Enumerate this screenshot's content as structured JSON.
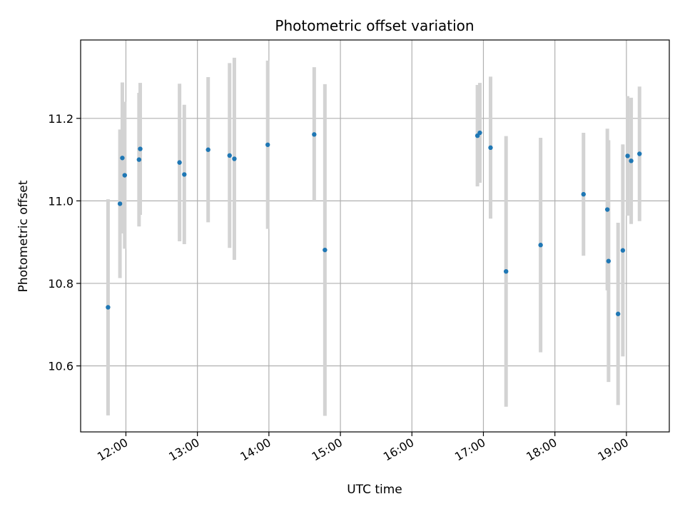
{
  "chart_data": {
    "type": "scatter",
    "title": "Photometric offset variation",
    "xlabel": "UTC time",
    "ylabel": "Photometric offset",
    "x_ticks": [
      "12:00",
      "13:00",
      "14:00",
      "15:00",
      "16:00",
      "17:00",
      "18:00",
      "19:00"
    ],
    "y_ticks": [
      "10.6",
      "10.8",
      "11.0",
      "11.2"
    ],
    "xlim": [
      "11:22",
      "19:36"
    ],
    "ylim": [
      10.44,
      11.39
    ],
    "grid": true,
    "marker_color": "#1f77b4",
    "errorbar_color": "#d3d3d3",
    "points": [
      {
        "t": "11:45",
        "y": 10.742,
        "err": 0.262
      },
      {
        "t": "11:55",
        "y": 10.993,
        "err": 0.18
      },
      {
        "t": "11:57",
        "y": 11.104,
        "err": 0.183
      },
      {
        "t": "11:59",
        "y": 11.062,
        "err": 0.178
      },
      {
        "t": "12:11",
        "y": 11.1,
        "err": 0.162
      },
      {
        "t": "12:12",
        "y": 11.126,
        "err": 0.16
      },
      {
        "t": "12:45",
        "y": 11.093,
        "err": 0.191
      },
      {
        "t": "12:49",
        "y": 11.064,
        "err": 0.169
      },
      {
        "t": "13:09",
        "y": 11.124,
        "err": 0.176
      },
      {
        "t": "13:27",
        "y": 11.11,
        "err": 0.224
      },
      {
        "t": "13:31",
        "y": 11.102,
        "err": 0.245
      },
      {
        "t": "13:59",
        "y": 11.136,
        "err": 0.204
      },
      {
        "t": "14:38",
        "y": 11.161,
        "err": 0.163
      },
      {
        "t": "14:47",
        "y": 10.881,
        "err": 0.402
      },
      {
        "t": "16:55",
        "y": 11.158,
        "err": 0.123
      },
      {
        "t": "16:57",
        "y": 11.165,
        "err": 0.121
      },
      {
        "t": "17:06",
        "y": 11.129,
        "err": 0.172
      },
      {
        "t": "17:19",
        "y": 10.829,
        "err": 0.328
      },
      {
        "t": "17:48",
        "y": 10.893,
        "err": 0.26
      },
      {
        "t": "18:24",
        "y": 11.016,
        "err": 0.149
      },
      {
        "t": "18:44",
        "y": 10.979,
        "err": 0.196
      },
      {
        "t": "18:45",
        "y": 10.854,
        "err": 0.293
      },
      {
        "t": "18:53",
        "y": 10.726,
        "err": 0.221
      },
      {
        "t": "18:57",
        "y": 10.88,
        "err": 0.257
      },
      {
        "t": "19:01",
        "y": 11.109,
        "err": 0.145
      },
      {
        "t": "19:04",
        "y": 11.097,
        "err": 0.153
      },
      {
        "t": "19:11",
        "y": 11.114,
        "err": 0.163
      }
    ]
  }
}
